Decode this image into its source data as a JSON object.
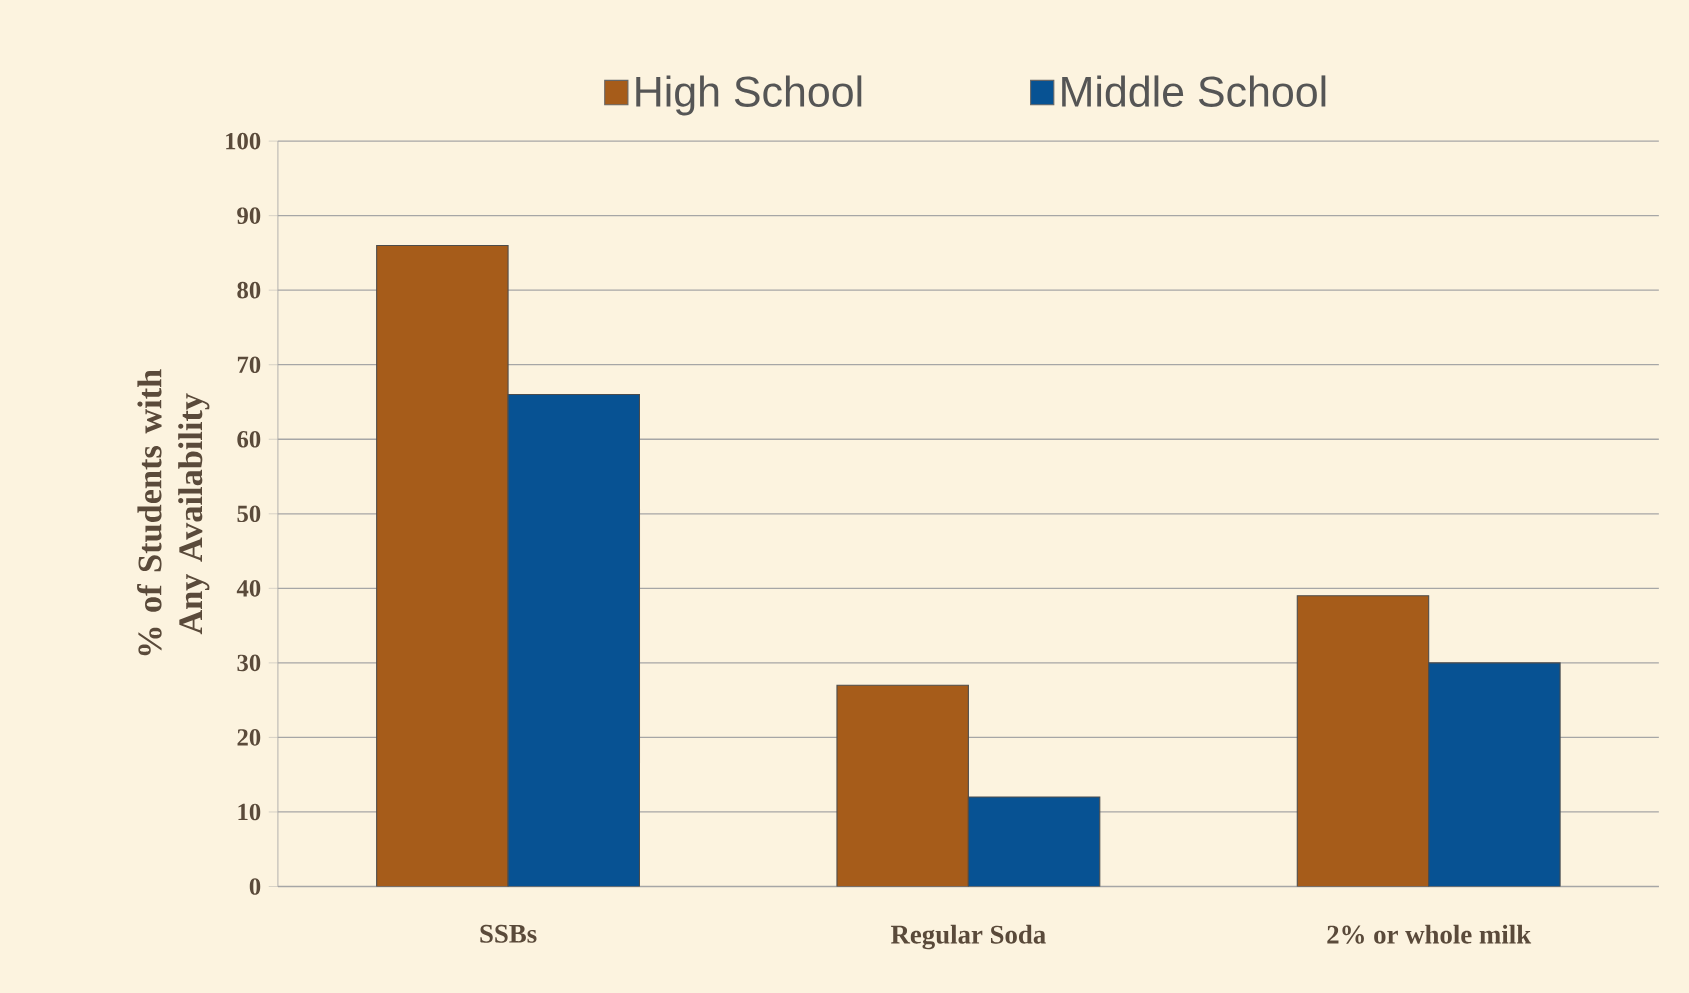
{
  "chart_data": {
    "type": "bar",
    "ylabel": "% of Students with Any Availability",
    "categories": [
      "SSBs",
      "Regular Soda",
      "2% or whole milk"
    ],
    "series": [
      {
        "name": "High School",
        "color": "#a65c1a",
        "values": [
          86,
          27,
          39
        ]
      },
      {
        "name": "Middle School",
        "color": "#075293",
        "values": [
          66,
          12,
          30
        ]
      }
    ],
    "ylim": [
      0,
      100
    ],
    "yticks": [
      0,
      10,
      20,
      30,
      40,
      50,
      60,
      70,
      80,
      90,
      100
    ],
    "grid": "y",
    "legend": "top"
  }
}
